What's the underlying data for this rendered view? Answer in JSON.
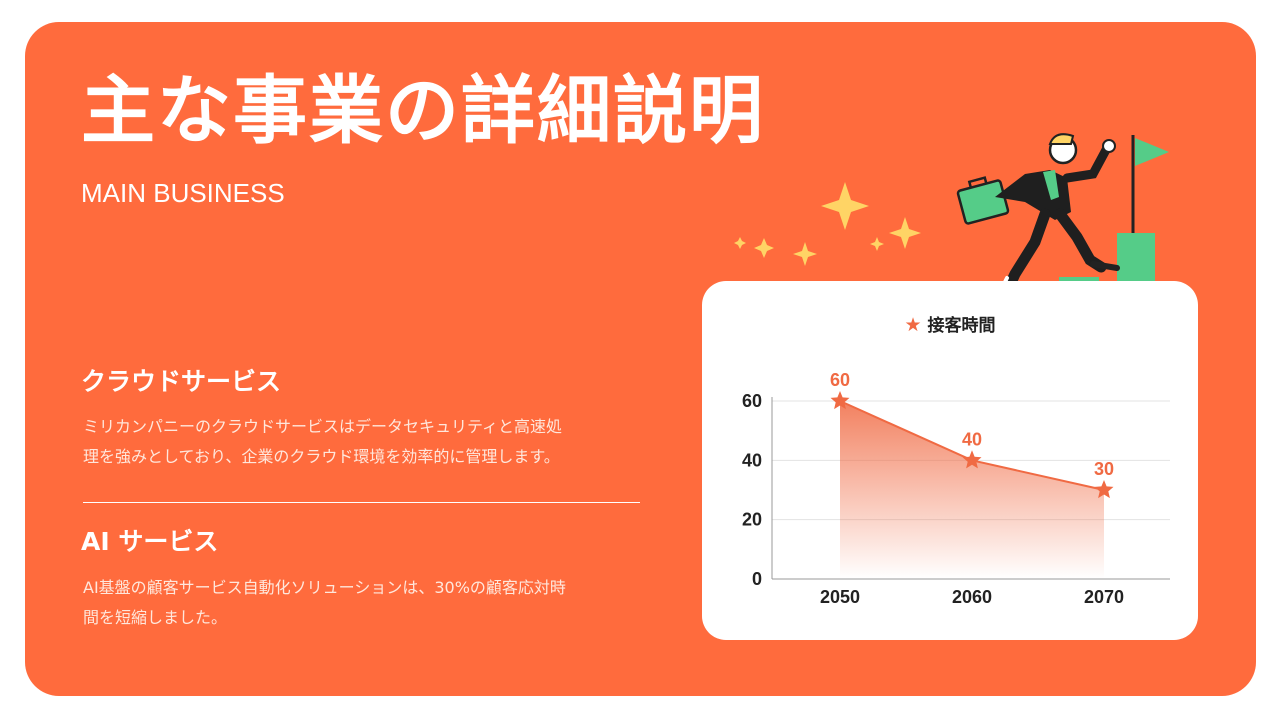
{
  "slide": {
    "title": "主な事業の詳細説明",
    "subtitle": "MAIN BUSINESS",
    "background": "#ff6b3d"
  },
  "sections": [
    {
      "title": "クラウドサービス",
      "lines": [
        "ミリカンパニーのクラウドサービスはデータセキュリティと高速処",
        "理を強みとしており、企業のクラウド環境を効率的に管理します。"
      ]
    },
    {
      "title": "AI サービス",
      "lines": [
        "AI基盤の顧客サービス自動化ソリューションは、30%の顧客応対時",
        "間を短縮しました。"
      ]
    }
  ],
  "illustration": {
    "icon": "businessman-climbing-bar-chart-icon"
  },
  "chart_data": {
    "type": "area",
    "legend": "接客時間",
    "legend_position": "top",
    "x": [
      "2050",
      "2060",
      "2070"
    ],
    "series": [
      {
        "name": "接客時間",
        "values": [
          60,
          40,
          30
        ],
        "color": "#f06a43"
      }
    ],
    "y_ticks": [
      "0",
      "20",
      "40",
      "60"
    ],
    "ylim": [
      0,
      60
    ],
    "grid": true,
    "marker": "star"
  }
}
